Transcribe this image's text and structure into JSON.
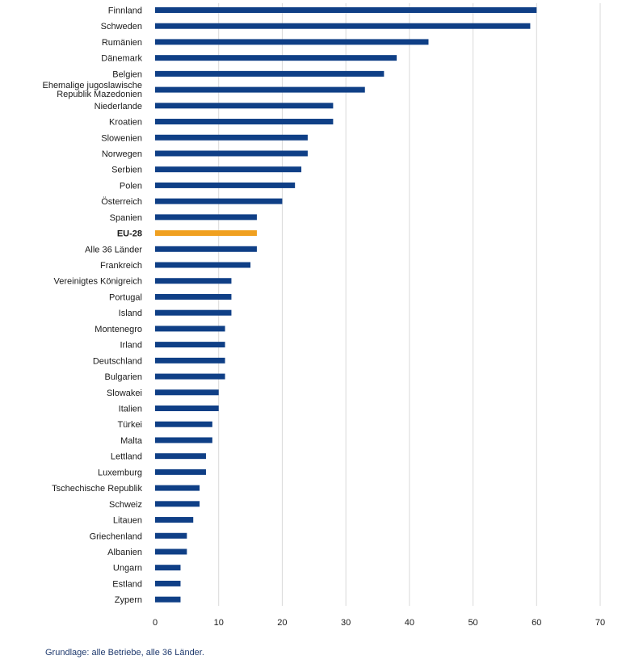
{
  "chart_data": {
    "type": "bar",
    "orientation": "horizontal",
    "categories": [
      "Finnland",
      "Schweden",
      "Rumänien",
      "Dänemark",
      "Belgien",
      "Ehemalige jugoslawische Republik Mazedonien",
      "Niederlande",
      "Kroatien",
      "Slowenien",
      "Norwegen",
      "Serbien",
      "Polen",
      "Österreich",
      "Spanien",
      "EU-28",
      "Alle 36 Länder",
      "Frankreich",
      "Vereinigtes Königreich",
      "Portugal",
      "Island",
      "Montenegro",
      "Irland",
      "Deutschland",
      "Bulgarien",
      "Slowakei",
      "Italien",
      "Türkei",
      "Malta",
      "Lettland",
      "Luxemburg",
      "Tschechische Republik",
      "Schweiz",
      "Litauen",
      "Griechenland",
      "Albanien",
      "Ungarn",
      "Estland",
      "Zypern"
    ],
    "values": [
      60,
      59,
      43,
      38,
      36,
      33,
      28,
      28,
      24,
      24,
      23,
      22,
      20,
      16,
      16,
      16,
      15,
      12,
      12,
      12,
      11,
      11,
      11,
      11,
      10,
      10,
      9,
      9,
      8,
      8,
      7,
      7,
      6,
      5,
      5,
      4,
      4,
      4
    ],
    "highlight_category": "EU-28",
    "colors": {
      "bar": "#0f3f86",
      "highlight": "#f0a020",
      "grid": "#d9d9d9",
      "footnote": "#1f3a6e"
    },
    "xlim": [
      0,
      70
    ],
    "xticks": [
      "0",
      "10",
      "20",
      "30",
      "40",
      "50",
      "60",
      "70"
    ],
    "grid": true
  },
  "footnote": "Grundlage: alle Betriebe, alle 36 Länder."
}
